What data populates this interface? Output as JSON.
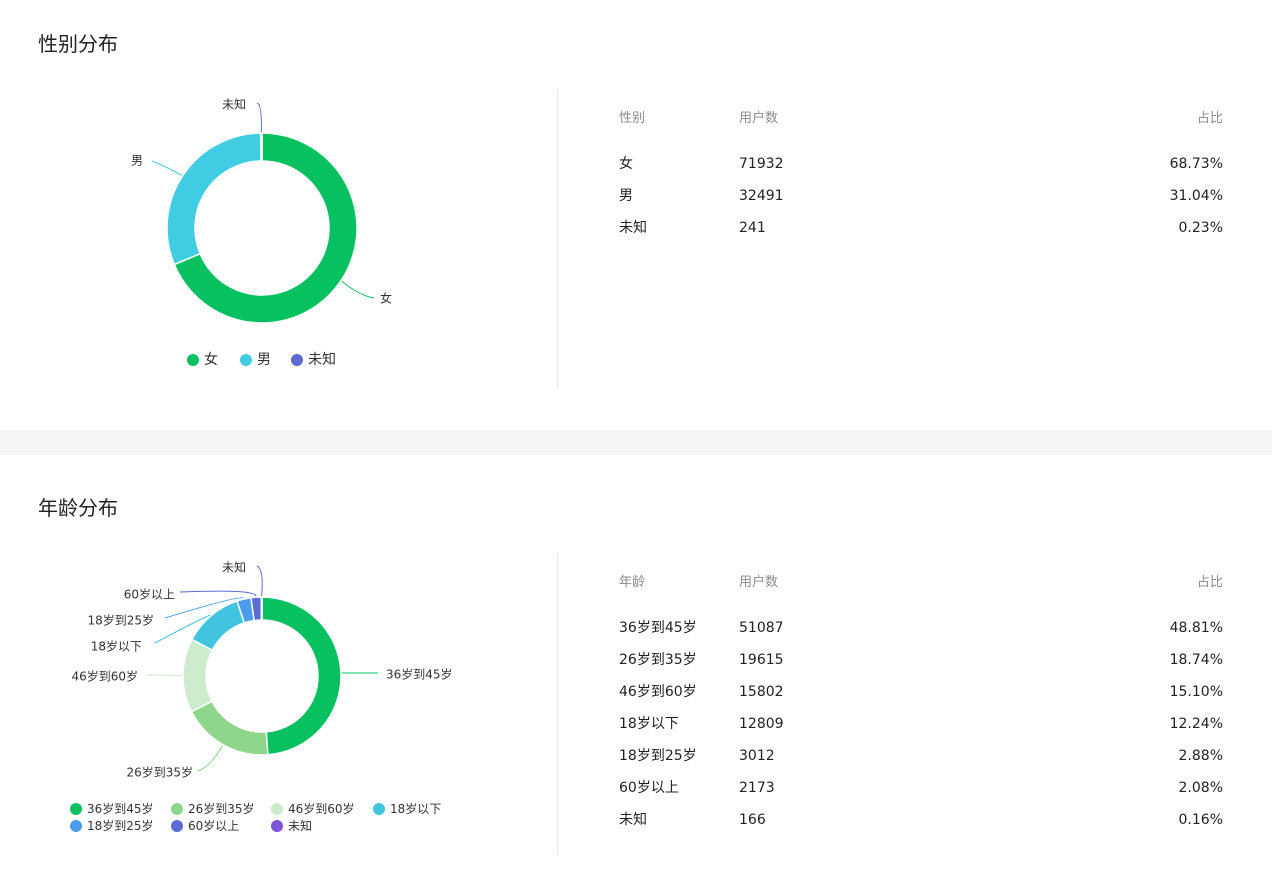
{
  "gender": {
    "title": "性别分布",
    "table": {
      "headers": [
        "性别",
        "用户数",
        "占比"
      ],
      "rows": [
        [
          "女",
          "71932",
          "68.73%"
        ],
        [
          "男",
          "32491",
          "31.04%"
        ],
        [
          "未知",
          "241",
          "0.23%"
        ]
      ]
    }
  },
  "age": {
    "title": "年龄分布",
    "table": {
      "headers": [
        "年龄",
        "用户数",
        "占比"
      ],
      "rows": [
        [
          "36岁到45岁",
          "51087",
          "48.81%"
        ],
        [
          "26岁到35岁",
          "19615",
          "18.74%"
        ],
        [
          "46岁到60岁",
          "15802",
          "15.10%"
        ],
        [
          "18岁以下",
          "12809",
          "12.24%"
        ],
        [
          "18岁到25岁",
          "3012",
          "2.88%"
        ],
        [
          "60岁以上",
          "2173",
          "2.08%"
        ],
        [
          "未知",
          "166",
          "0.16%"
        ]
      ]
    }
  },
  "chart_data": [
    {
      "type": "pie",
      "donut": true,
      "categories": [
        "女",
        "男",
        "未知"
      ],
      "values": [
        71932,
        32491,
        241
      ],
      "colors": [
        "#07c160",
        "#40cde3",
        "#5a6bd1"
      ],
      "legend": "bottom"
    },
    {
      "type": "pie",
      "donut": true,
      "categories": [
        "36岁到45岁",
        "26岁到35岁",
        "46岁到60岁",
        "18岁以下",
        "18岁到25岁",
        "60岁以上",
        "未知"
      ],
      "values": [
        51087,
        19615,
        15802,
        12809,
        3012,
        2173,
        166
      ],
      "colors": [
        "#07c160",
        "#8ed68c",
        "#cdebcd",
        "#40c4e0",
        "#4a9de8",
        "#5a6bd1",
        "#7b55d6"
      ],
      "legend": "bottom"
    }
  ]
}
